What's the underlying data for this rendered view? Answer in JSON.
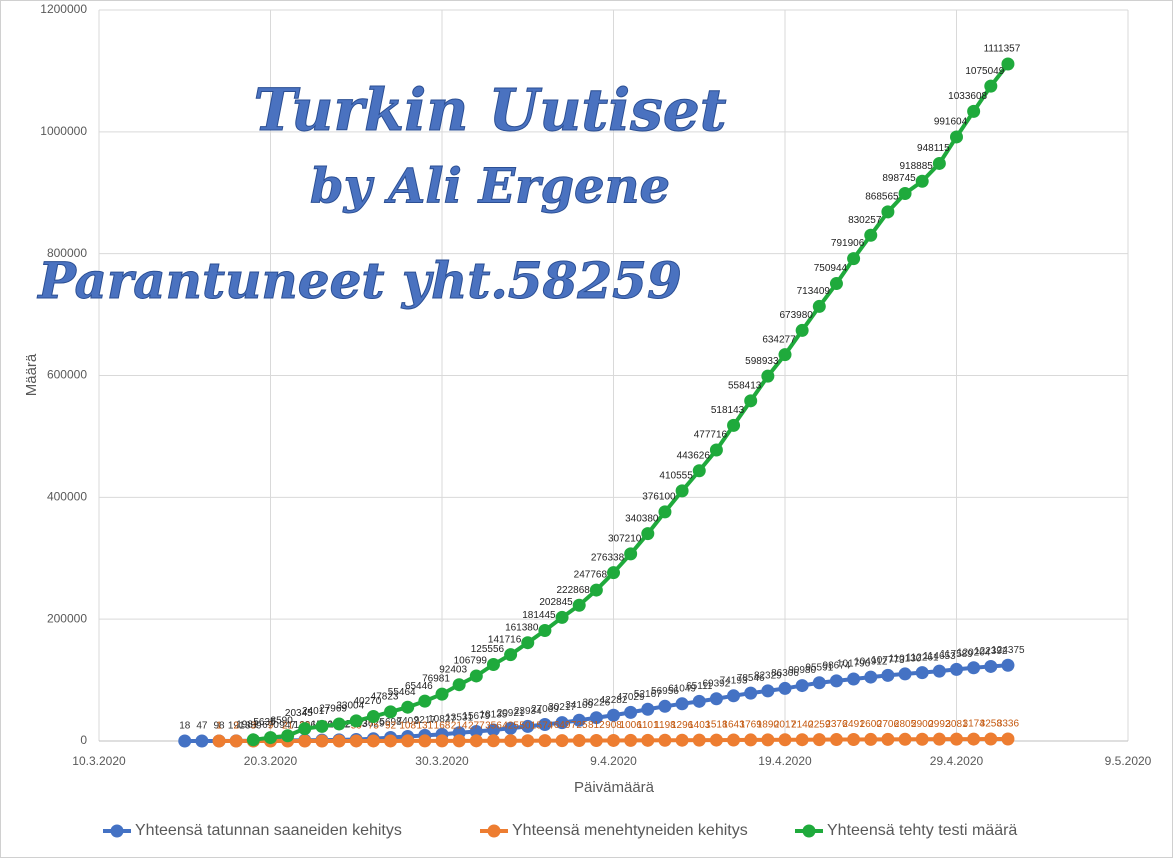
{
  "chart_data": {
    "type": "line",
    "y_label": "Määrä",
    "x_label": "Päivämäärä",
    "annotations": [
      "Turkin Uutiset",
      "by Ali Ergene",
      "Parantuneet yht.58259"
    ],
    "xlim": [
      "2020-03-10",
      "2020-05-09"
    ],
    "xticks": [
      {
        "value": "2020-03-10",
        "label": "10.3.2020"
      },
      {
        "value": "2020-03-20",
        "label": "20.3.2020"
      },
      {
        "value": "2020-03-30",
        "label": "30.3.2020"
      },
      {
        "value": "2020-04-09",
        "label": "9.4.2020"
      },
      {
        "value": "2020-04-19",
        "label": "19.4.2020"
      },
      {
        "value": "2020-04-29",
        "label": "29.4.2020"
      },
      {
        "value": "2020-05-09",
        "label": "9.5.2020"
      }
    ],
    "ylim": [
      0,
      1200000
    ],
    "yticks": [
      0,
      200000,
      400000,
      600000,
      800000,
      1000000,
      1200000
    ],
    "grid": true,
    "legend": "bottom",
    "series": [
      {
        "name": "Yhteensä tatunnan saaneiden kehitys",
        "color": "#4472c4",
        "label_color": "#333333",
        "x": [
          "2020-03-15",
          "2020-03-16",
          "2020-03-17",
          "2020-03-18",
          "2020-03-19",
          "2020-03-20",
          "2020-03-21",
          "2020-03-22",
          "2020-03-23",
          "2020-03-24",
          "2020-03-25",
          "2020-03-26",
          "2020-03-27",
          "2020-03-28",
          "2020-03-29",
          "2020-03-30",
          "2020-03-31",
          "2020-04-01",
          "2020-04-02",
          "2020-04-03",
          "2020-04-04",
          "2020-04-05",
          "2020-04-06",
          "2020-04-07",
          "2020-04-08",
          "2020-04-09",
          "2020-04-10",
          "2020-04-11",
          "2020-04-12",
          "2020-04-13",
          "2020-04-14",
          "2020-04-15",
          "2020-04-16",
          "2020-04-17",
          "2020-04-18",
          "2020-04-19",
          "2020-04-20",
          "2020-04-21",
          "2020-04-22",
          "2020-04-23",
          "2020-04-24",
          "2020-04-25",
          "2020-04-26",
          "2020-04-27",
          "2020-04-28",
          "2020-04-29",
          "2020-04-30",
          "2020-05-01",
          "2020-05-02"
        ],
        "values": [
          18,
          47,
          98,
          191,
          359,
          670,
          947,
          1236,
          1529,
          1872,
          2433,
          3629,
          5698,
          7402,
          9217,
          10827,
          13531,
          15679,
          18135,
          20921,
          23934,
          27069,
          30217,
          34109,
          38226,
          42282,
          47029,
          52167,
          56956,
          61049,
          65111,
          69392,
          74193,
          78546,
          82329,
          86306,
          90980,
          95591,
          98674,
          101790,
          104912,
          107773,
          110130,
          112261,
          114653,
          117589,
          120204,
          122392,
          124375
        ]
      },
      {
        "name": "Yhteensä menehtyneiden kehitys",
        "color": "#ed7d31",
        "label_color": "#c55a11",
        "x": [
          "2020-03-17",
          "2020-03-18",
          "2020-03-19",
          "2020-03-20",
          "2020-03-21",
          "2020-03-22",
          "2020-03-23",
          "2020-03-24",
          "2020-03-25",
          "2020-03-26",
          "2020-03-27",
          "2020-03-28",
          "2020-03-29",
          "2020-03-30",
          "2020-03-31",
          "2020-04-01",
          "2020-04-02",
          "2020-04-03",
          "2020-04-04",
          "2020-04-05",
          "2020-04-06",
          "2020-04-07",
          "2020-04-08",
          "2020-04-09",
          "2020-04-10",
          "2020-04-11",
          "2020-04-12",
          "2020-04-13",
          "2020-04-14",
          "2020-04-15",
          "2020-04-16",
          "2020-04-17",
          "2020-04-18",
          "2020-04-19",
          "2020-04-20",
          "2020-04-21",
          "2020-04-22",
          "2020-04-23",
          "2020-04-24",
          "2020-04-25",
          "2020-04-26",
          "2020-04-27",
          "2020-04-28",
          "2020-04-29",
          "2020-04-30",
          "2020-05-01",
          "2020-05-02"
        ],
        "values": [
          1,
          2,
          3,
          9,
          21,
          30,
          37,
          44,
          59,
          75,
          92,
          108,
          131,
          168,
          214,
          277,
          356,
          425,
          501,
          574,
          649,
          725,
          812,
          908,
          1006,
          1101,
          1198,
          1296,
          1403,
          1518,
          1643,
          1769,
          1890,
          2017,
          2140,
          2259,
          2376,
          2491,
          2600,
          2706,
          2805,
          2900,
          2992,
          3081,
          3174,
          3258,
          3336
        ]
      },
      {
        "name": "Yhteensä tehty testi määrä",
        "color": "#1faa3c",
        "label_color": "#222222",
        "x": [
          "2020-03-19",
          "2020-03-20",
          "2020-03-21",
          "2020-03-22",
          "2020-03-23",
          "2020-03-24",
          "2020-03-25",
          "2020-03-26",
          "2020-03-27",
          "2020-03-28",
          "2020-03-29",
          "2020-03-30",
          "2020-03-31",
          "2020-04-01",
          "2020-04-02",
          "2020-04-03",
          "2020-04-04",
          "2020-04-05",
          "2020-04-06",
          "2020-04-07",
          "2020-04-08",
          "2020-04-09",
          "2020-04-10",
          "2020-04-11",
          "2020-04-12",
          "2020-04-13",
          "2020-04-14",
          "2020-04-15",
          "2020-04-16",
          "2020-04-17",
          "2020-04-18",
          "2020-04-19",
          "2020-04-20",
          "2020-04-21",
          "2020-04-22",
          "2020-04-23",
          "2020-04-24",
          "2020-04-25",
          "2020-04-26",
          "2020-04-27",
          "2020-04-28",
          "2020-04-29",
          "2020-04-30",
          "2020-05-01",
          "2020-05-02"
        ],
        "values": [
          1981,
          5635,
          8590,
          20345,
          24017,
          27969,
          33004,
          40270,
          47823,
          55464,
          65446,
          76981,
          92403,
          106799,
          125556,
          141716,
          161380,
          181445,
          202845,
          222868,
          247768,
          276338,
          307210,
          340380,
          376100,
          410555,
          443626,
          477716,
          518143,
          558413,
          598933,
          634277,
          673980,
          713409,
          750944,
          791906,
          830257,
          868565,
          898745,
          918885,
          948115,
          991604,
          1033608,
          1075049,
          1111357
        ]
      }
    ]
  }
}
